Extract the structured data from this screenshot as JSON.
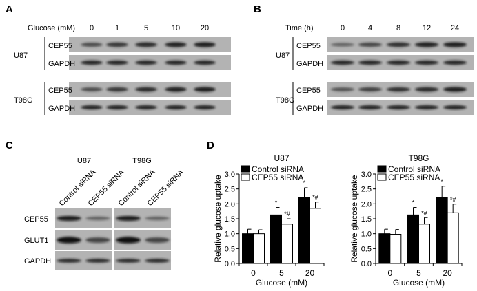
{
  "panels": {
    "A": {
      "label": "A",
      "condition_label": "Glucose (mM)",
      "lanes": [
        "0",
        "1",
        "5",
        "10",
        "20"
      ],
      "cell_lines": [
        "U87",
        "T98G"
      ],
      "proteins": [
        "CEP55",
        "GAPDH"
      ],
      "cep55_intensity": [
        [
          0.55,
          0.7,
          0.8,
          0.85,
          0.9
        ],
        [
          0.55,
          0.7,
          0.8,
          0.85,
          0.9
        ]
      ]
    },
    "B": {
      "label": "B",
      "condition_label": "Time (h)",
      "lanes": [
        "0",
        "4",
        "8",
        "12",
        "24"
      ],
      "cell_lines": [
        "U87",
        "T98G"
      ],
      "proteins": [
        "CEP55",
        "GAPDH"
      ],
      "cep55_intensity": [
        [
          0.35,
          0.6,
          0.75,
          0.85,
          0.9
        ],
        [
          0.5,
          0.65,
          0.75,
          0.8,
          0.9
        ]
      ]
    },
    "C": {
      "label": "C",
      "cell_lines": [
        "U87",
        "T98G"
      ],
      "lanes": [
        "Control siRNA",
        "CEP55 siRNA"
      ],
      "proteins": [
        "CEP55",
        "GLUT1",
        "GAPDH"
      ]
    },
    "D": {
      "label": "D"
    }
  },
  "chart_data": [
    {
      "type": "bar",
      "title": "U87",
      "xlabel": "Glucose (mM)",
      "ylabel": "Relative glucose uptake",
      "categories": [
        "0",
        "5",
        "20"
      ],
      "ylim": [
        0,
        3.0
      ],
      "yticks": [
        "0.0",
        "0.5",
        "1.0",
        "1.5",
        "2.0",
        "2.5",
        "3.0"
      ],
      "legend_position": "top-left",
      "series": [
        {
          "name": "Control siRNA",
          "color": "#000000",
          "values": [
            1.0,
            1.63,
            2.22
          ],
          "errors": [
            0.15,
            0.25,
            0.32
          ],
          "annotations": [
            "",
            "*",
            "*"
          ]
        },
        {
          "name": "CEP55 siRNA",
          "color": "#ffffff",
          "values": [
            1.0,
            1.32,
            1.85
          ],
          "errors": [
            0.13,
            0.18,
            0.21
          ],
          "annotations": [
            "",
            "*#",
            "*#"
          ]
        }
      ]
    },
    {
      "type": "bar",
      "title": "T98G",
      "xlabel": "Glucose (mM)",
      "ylabel": "Relative glucose uptake",
      "categories": [
        "0",
        "5",
        "20"
      ],
      "ylim": [
        0,
        3.0
      ],
      "yticks": [
        "0.0",
        "0.5",
        "1.0",
        "1.5",
        "2.0",
        "2.5",
        "3.0"
      ],
      "legend_position": "top-left",
      "series": [
        {
          "name": "Control siRNA",
          "color": "#000000",
          "values": [
            1.0,
            1.63,
            2.22
          ],
          "errors": [
            0.15,
            0.25,
            0.37
          ],
          "annotations": [
            "",
            "*",
            "*"
          ]
        },
        {
          "name": "CEP55 siRNA",
          "color": "#ffffff",
          "values": [
            0.98,
            1.32,
            1.7
          ],
          "errors": [
            0.16,
            0.22,
            0.29
          ],
          "annotations": [
            "",
            "*#",
            "*#"
          ]
        }
      ]
    }
  ]
}
